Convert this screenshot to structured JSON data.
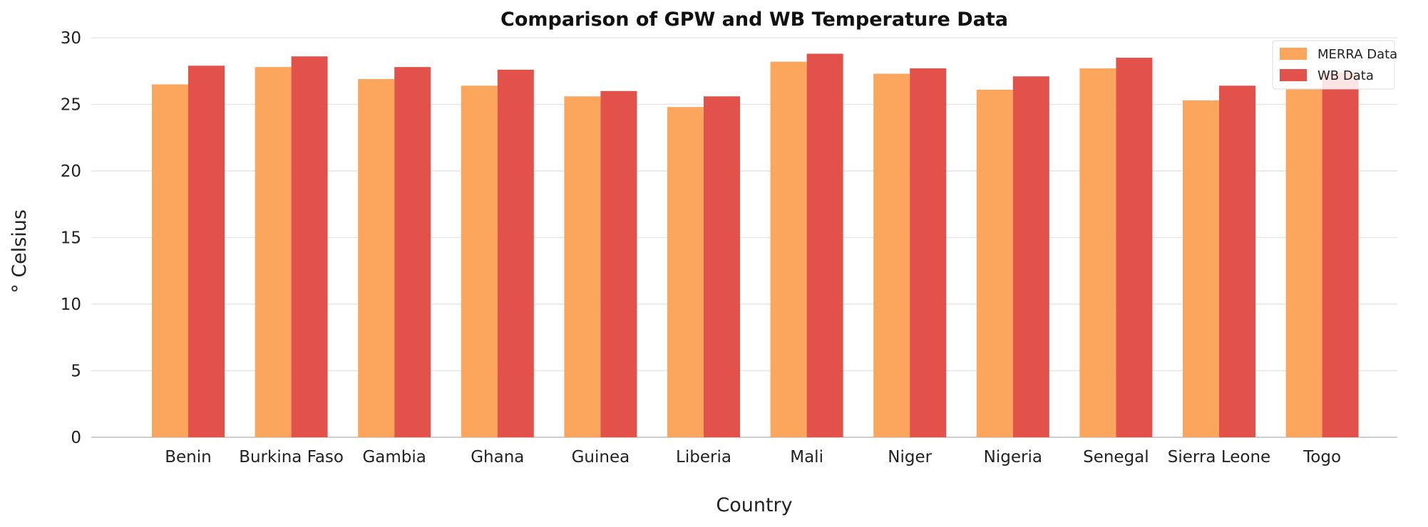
{
  "chart_data": {
    "type": "bar",
    "title": "Comparison of GPW and WB Temperature Data",
    "xlabel": "Country",
    "ylabel": "° Celsius",
    "categories": [
      "Benin",
      "Burkina Faso",
      "Gambia",
      "Ghana",
      "Guinea",
      "Liberia",
      "Mali",
      "Niger",
      "Nigeria",
      "Senegal",
      "Sierra Leone",
      "Togo"
    ],
    "series": [
      {
        "name": "MERRA Data",
        "color": "#fca55d",
        "values": [
          26.5,
          27.8,
          26.9,
          26.4,
          25.6,
          24.8,
          28.2,
          27.3,
          26.1,
          27.7,
          25.3,
          26.2
        ]
      },
      {
        "name": "WB Data",
        "color": "#e2514a",
        "values": [
          27.9,
          28.6,
          27.8,
          27.6,
          26.0,
          25.6,
          28.8,
          27.7,
          27.1,
          28.5,
          26.4,
          27.4
        ]
      }
    ],
    "ylim": [
      0,
      30
    ],
    "yticks": [
      "0",
      "5",
      "10",
      "15",
      "20",
      "25",
      "30"
    ],
    "grid": true,
    "legend_position": "top-right"
  }
}
